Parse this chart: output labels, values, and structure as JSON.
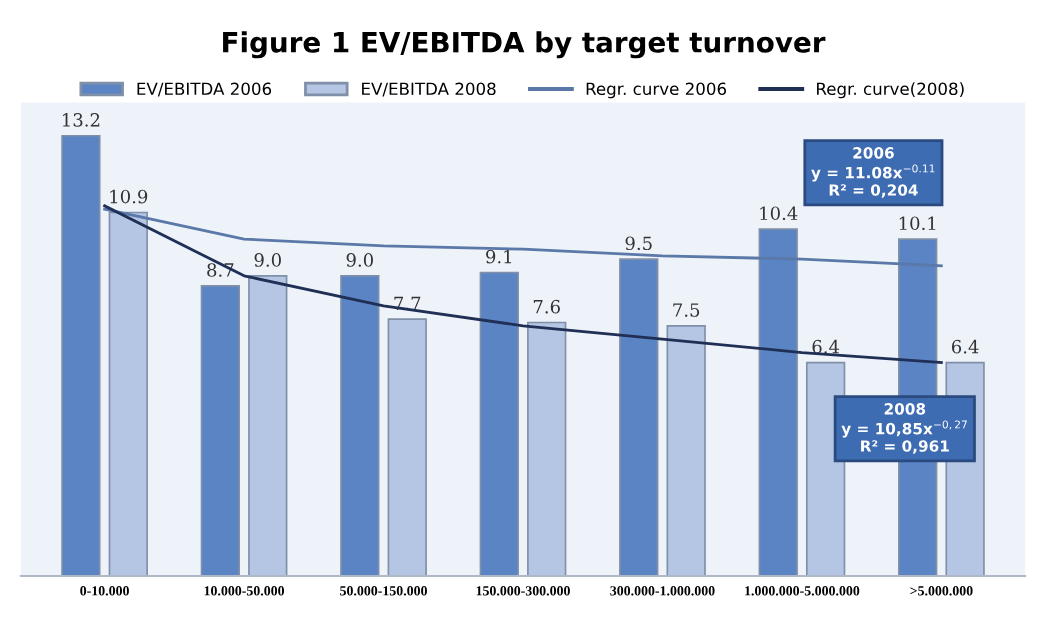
{
  "chart_data": {
    "type": "bar",
    "title": "Figure 1 EV/EBITDA by target turnover",
    "categories": [
      "0-10.000",
      "10.000-50.000",
      "50.000-150.000",
      "150.000-300.000",
      "300.000-1.000.000",
      "1.000.000-5.000.000",
      ">5.000.000"
    ],
    "series": [
      {
        "name": "EV/EBITDA 2006",
        "color": "#5b84c4",
        "values": [
          13.2,
          8.7,
          9.0,
          9.1,
          9.5,
          10.4,
          10.1
        ],
        "value_labels": [
          "13.2",
          "8.7",
          "9.0",
          "9.1",
          "9.5",
          "10.4",
          "10.1"
        ]
      },
      {
        "name": "EV/EBITDA 2008",
        "color": "#b4c6e4",
        "values": [
          10.9,
          9.0,
          7.7,
          7.6,
          7.5,
          6.4,
          6.4
        ],
        "value_labels": [
          "10.9",
          "9.0",
          "7.7",
          "7.6",
          "7.5",
          "6.4",
          "6.4"
        ]
      },
      {
        "name": "Regr. curve 2006",
        "type": "line",
        "color": "#5a78a8",
        "values": [
          11.0,
          10.1,
          9.9,
          9.8,
          9.6,
          9.5,
          9.3
        ]
      },
      {
        "name": "Regr. curve(2008)",
        "type": "line",
        "color": "#1f2f55",
        "values": [
          11.1,
          9.0,
          8.1,
          7.5,
          7.1,
          6.7,
          6.4
        ]
      }
    ],
    "annotations": [
      "2006\ny = 11.08x$^{−0.11}$\nR² = 0,204",
      "2008\ny = 10,85x$^{−0,27}$\nR² = 0,961"
    ],
    "legend": "top",
    "grid": false
  }
}
